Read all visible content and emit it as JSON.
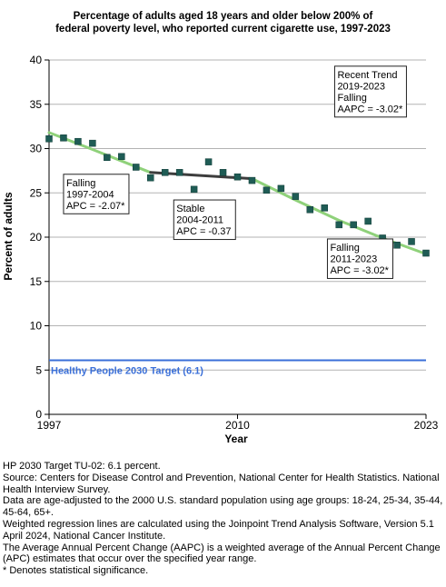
{
  "chart_data": {
    "type": "scatter",
    "title_lines": [
      "Percentage of adults aged 18 years and older below 200% of",
      "federal poverty level, who reported current cigarette use, 1997-2023"
    ],
    "xlabel": "Year",
    "ylabel": "Percent of adults",
    "xlim": [
      1997,
      2023
    ],
    "ylim": [
      0,
      40
    ],
    "x_ticks": [
      "1997",
      "2010",
      "2023"
    ],
    "y_ticks": [
      "0",
      "5",
      "10",
      "15",
      "20",
      "25",
      "30",
      "35",
      "40"
    ],
    "grid": "horizontal",
    "points": [
      {
        "x": 1997,
        "y": 31.1
      },
      {
        "x": 1998,
        "y": 31.2
      },
      {
        "x": 1999,
        "y": 30.8
      },
      {
        "x": 2000,
        "y": 30.6
      },
      {
        "x": 2001,
        "y": 29.0
      },
      {
        "x": 2002,
        "y": 29.1
      },
      {
        "x": 2003,
        "y": 27.9
      },
      {
        "x": 2004,
        "y": 26.7
      },
      {
        "x": 2005,
        "y": 27.3
      },
      {
        "x": 2006,
        "y": 27.3
      },
      {
        "x": 2007,
        "y": 25.4
      },
      {
        "x": 2008,
        "y": 28.5
      },
      {
        "x": 2009,
        "y": 27.3
      },
      {
        "x": 2010,
        "y": 26.8
      },
      {
        "x": 2011,
        "y": 26.4
      },
      {
        "x": 2012,
        "y": 25.3
      },
      {
        "x": 2013,
        "y": 25.5
      },
      {
        "x": 2014,
        "y": 24.6
      },
      {
        "x": 2015,
        "y": 23.1
      },
      {
        "x": 2016,
        "y": 23.3
      },
      {
        "x": 2017,
        "y": 21.4
      },
      {
        "x": 2018,
        "y": 21.4
      },
      {
        "x": 2019,
        "y": 21.8
      },
      {
        "x": 2020,
        "y": 19.9
      },
      {
        "x": 2021,
        "y": 19.1
      },
      {
        "x": 2022,
        "y": 19.5
      },
      {
        "x": 2023,
        "y": 18.2
      }
    ],
    "trend_segments": [
      {
        "color": "#8fd17a",
        "points": [
          {
            "x": 1997,
            "y": 31.8
          },
          {
            "x": 2000,
            "y": 29.9
          },
          {
            "x": 2004,
            "y": 27.3
          }
        ]
      },
      {
        "color": "#3d3d3d",
        "points": [
          {
            "x": 2004,
            "y": 27.3
          },
          {
            "x": 2011,
            "y": 26.6
          }
        ]
      },
      {
        "color": "#8fd17a",
        "points": [
          {
            "x": 2011,
            "y": 26.6
          },
          {
            "x": 2014,
            "y": 24.2
          },
          {
            "x": 2017,
            "y": 21.9
          },
          {
            "x": 2020,
            "y": 19.9
          },
          {
            "x": 2023,
            "y": 18.1
          }
        ]
      }
    ],
    "target": {
      "value": 6.1,
      "label": "Healthy People 2030 Target (6.1)",
      "color": "#3a6fd8"
    },
    "point_color": "#1f5c55",
    "annotations": [
      {
        "lines": [
          "Falling",
          "1997-2004",
          "APC = -2.07*"
        ],
        "anchor": {
          "x": 1998,
          "y": 27.1
        }
      },
      {
        "lines": [
          "Stable",
          "2004-2011",
          "APC = -0.37"
        ],
        "anchor": {
          "x": 2005.6,
          "y": 24.2
        }
      },
      {
        "lines": [
          "Falling",
          "2011-2023",
          "APC = -3.02*"
        ],
        "anchor": {
          "x": 2016.2,
          "y": 19.8
        }
      },
      {
        "lines": [
          "Recent Trend",
          "2019-2023",
          "Falling",
          "AAPC = -3.02*"
        ],
        "anchor": {
          "x": 2016.7,
          "y": 39.3
        }
      }
    ]
  },
  "notes": [
    "HP 2030 Target TU-02: 6.1 percent.",
    "Source: Centers for Disease Control and Prevention, National Center for Health Statistics. National Health Interview Survey.",
    "Data are age-adjusted to the 2000 U.S. standard population using age groups: 18-24, 25-34, 35-44, 45-64, 65+.",
    "Weighted regression lines are calculated using the Joinpoint Trend Analysis Software, Version 5.1 April 2024, National Cancer Institute.",
    "The Average Annual Percent Change (AAPC) is a weighted average of the Annual Percent Change (APC) estimates that occur over the specified year range.",
    "* Denotes statistical significance."
  ]
}
